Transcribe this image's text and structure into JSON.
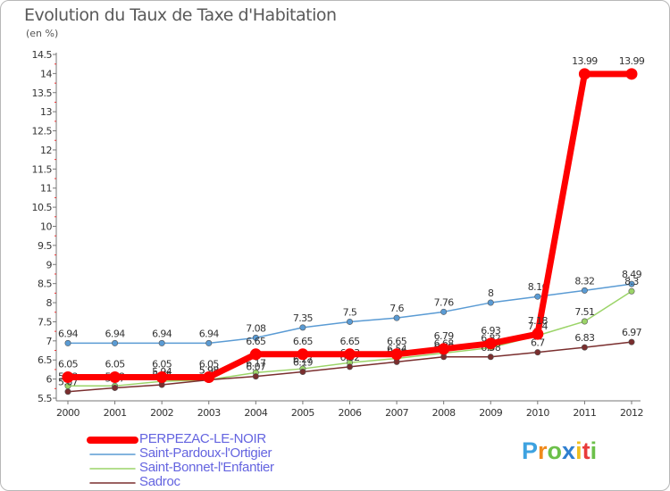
{
  "chart_data": {
    "type": "line",
    "title": "Evolution du Taux de Taxe d'Habitation",
    "unit_label": "(en %)",
    "xlabel": "",
    "ylabel": "",
    "x": [
      "2000",
      "2001",
      "2002",
      "2003",
      "2004",
      "2005",
      "2006",
      "2007",
      "2008",
      "2009",
      "2010",
      "2011",
      "2012"
    ],
    "ylim": [
      5.5,
      14.5
    ],
    "yticks": [
      "5.5",
      "6",
      "6.5",
      "7",
      "7.5",
      "8",
      "8.5",
      "9",
      "9.5",
      "10",
      "10.5",
      "11",
      "11.5",
      "12",
      "12.5",
      "13",
      "13.5",
      "14",
      "14.5"
    ],
    "grid": false,
    "legend_position": "bottom-left",
    "series": [
      {
        "name": "PERPEZAC-LE-NOIR",
        "color": "#ff0000",
        "values": [
          6.05,
          6.05,
          6.05,
          6.05,
          6.65,
          6.65,
          6.65,
          6.65,
          6.79,
          6.93,
          7.18,
          13.99,
          13.99
        ],
        "labels": [
          "6.05",
          "6.05",
          "6.05",
          "6.05",
          "6.65",
          "6.65",
          "6.65",
          "6.65",
          "6.79",
          "6.93",
          "7.18",
          "13.99",
          "13.99"
        ]
      },
      {
        "name": "Saint-Pardoux-l'Ortigier",
        "color": "#5a9bd4",
        "values": [
          6.94,
          6.94,
          6.94,
          6.94,
          7.08,
          7.35,
          7.5,
          7.6,
          7.76,
          8,
          8.16,
          8.32,
          8.49
        ],
        "labels": [
          "6.94",
          "6.94",
          "6.94",
          "6.94",
          "7.08",
          "7.35",
          "7.5",
          "7.6",
          "7.76",
          "8",
          "8.16",
          "8.32",
          "8.49"
        ]
      },
      {
        "name": "Saint-Bonnet-l'Enfantier",
        "color": "#9bd468",
        "values": [
          5.82,
          5.82,
          5.94,
          5.98,
          6.17,
          6.27,
          6.43,
          6.54,
          6.68,
          6.82,
          7.14,
          7.51,
          8.3
        ],
        "labels": [
          "5.82",
          "5.82",
          "5.94",
          "5.98",
          "6.17",
          "6.27",
          "6.43",
          "6.54",
          "6.68",
          "6.82",
          "7.14",
          "7.51",
          "8.3"
        ]
      },
      {
        "name": "Sadroc",
        "color": "#7a2e2e",
        "values": [
          5.67,
          5.77,
          5.85,
          5.98,
          6.07,
          6.19,
          6.32,
          6.45,
          6.58,
          6.58,
          6.7,
          6.83,
          6.97
        ],
        "labels": [
          "5.67",
          "5.77",
          "5.85",
          "5.98",
          "6.07",
          "6.19",
          "6.32",
          "6.45",
          "6.58",
          "6.58",
          "6.7",
          "6.83",
          "6.97"
        ]
      }
    ]
  },
  "branding": {
    "logo_letters": [
      "P",
      "r",
      "o",
      "x",
      "i",
      "t",
      "i"
    ],
    "logo_colors": [
      "#3da2e0",
      "#f08a1c",
      "#6cc04a",
      "#2f7fd0",
      "#f0c020",
      "#e83a3a",
      "#6cc04a"
    ]
  }
}
